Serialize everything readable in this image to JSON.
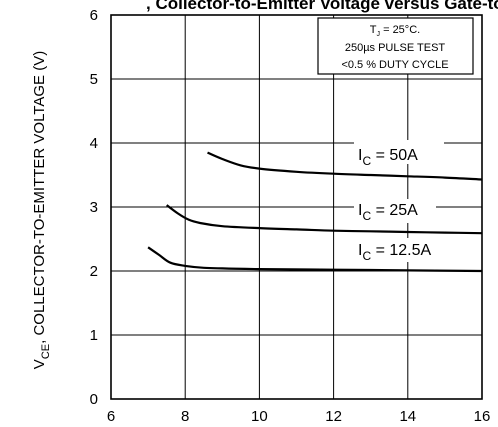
{
  "chart_data": {
    "type": "line",
    "title_fragment": ", Collector-to-Emitter Voltage versus Gate-to-Emitter Voltage",
    "ylabel_parts": [
      "V",
      "CE",
      ", COLLECTOR-TO-EMITTER VOLTAGE (V)"
    ],
    "xlim": [
      6,
      16
    ],
    "ylim": [
      0,
      6
    ],
    "xticks": [
      "6",
      "8",
      "10",
      "12",
      "14",
      "16"
    ],
    "yticks": [
      "0",
      "1",
      "2",
      "3",
      "4",
      "5",
      "6"
    ],
    "grid": true,
    "annotation": {
      "line1_parts": [
        "T",
        "J",
        " = 25°C."
      ],
      "line2": "250µs PULSE TEST",
      "line3": "<0.5 % DUTY CYCLE"
    },
    "series": [
      {
        "label_parts": [
          "I",
          "C",
          " = 50A"
        ],
        "x": [
          8.6,
          9.0,
          9.5,
          10.0,
          11.0,
          12.0,
          13.0,
          14.0,
          15.0,
          16.0
        ],
        "y": [
          3.85,
          3.75,
          3.65,
          3.6,
          3.55,
          3.52,
          3.5,
          3.48,
          3.46,
          3.43
        ]
      },
      {
        "label_parts": [
          "I",
          "C",
          " = 25A"
        ],
        "x": [
          7.5,
          7.8,
          8.1,
          8.4,
          9.0,
          10.0,
          11.0,
          12.0,
          13.0,
          14.0,
          15.0,
          16.0
        ],
        "y": [
          3.03,
          2.9,
          2.8,
          2.75,
          2.7,
          2.67,
          2.65,
          2.63,
          2.62,
          2.61,
          2.6,
          2.59
        ]
      },
      {
        "label_parts": [
          "I",
          "C",
          " = 12.5A"
        ],
        "x": [
          7.0,
          7.3,
          7.6,
          8.0,
          8.5,
          9.0,
          10.0,
          12.0,
          14.0,
          16.0
        ],
        "y": [
          2.37,
          2.25,
          2.13,
          2.08,
          2.05,
          2.04,
          2.03,
          2.02,
          2.01,
          2.0
        ]
      }
    ]
  }
}
